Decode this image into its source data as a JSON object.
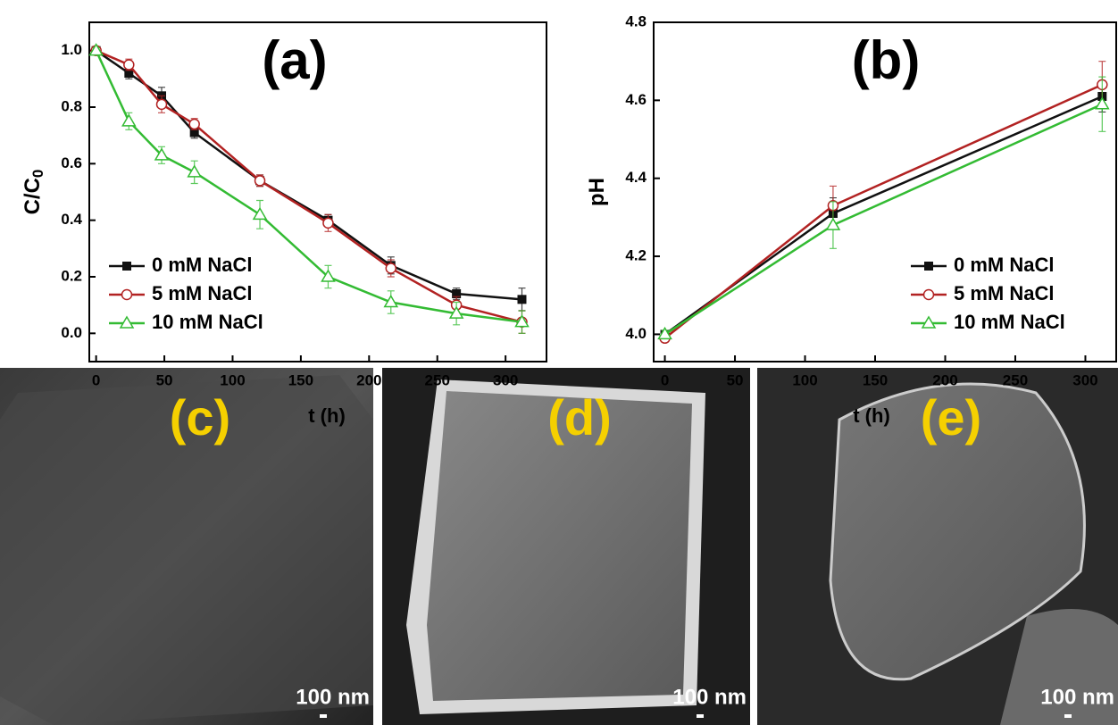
{
  "chart_data": [
    {
      "type": "line",
      "annotation": "(a)",
      "xlabel": "t (h)",
      "ylabel": "C/C",
      "ylabel_subscript": "0",
      "x": [
        0,
        24,
        48,
        72,
        120,
        170,
        216,
        264,
        312
      ],
      "xlim": [
        -5,
        330
      ],
      "xticks": [
        0,
        50,
        100,
        150,
        200,
        250,
        300
      ],
      "ylim": [
        -0.1,
        1.1
      ],
      "yticks": [
        {
          "value": 0,
          "label": "0.0"
        },
        0.2,
        0.4,
        0.6,
        0.8,
        {
          "value": 1,
          "label": "1.0"
        }
      ],
      "legend": "lower left",
      "series": [
        {
          "name": "0 mM NaCl",
          "color": "#111111",
          "marker": "square",
          "values": [
            1.0,
            0.92,
            0.84,
            0.71,
            0.54,
            0.4,
            0.24,
            0.14,
            0.12
          ],
          "errors": [
            0.01,
            0.02,
            0.03,
            0.02,
            0.02,
            0.02,
            0.03,
            0.02,
            0.04
          ]
        },
        {
          "name": "5 mM NaCl",
          "color": "#b22222",
          "marker": "circle",
          "values": [
            1.0,
            0.95,
            0.81,
            0.74,
            0.54,
            0.39,
            0.23,
            0.1,
            0.04
          ],
          "errors": [
            0.01,
            0.02,
            0.03,
            0.02,
            0.02,
            0.03,
            0.03,
            0.03,
            0.04
          ]
        },
        {
          "name": "10 mM NaCl",
          "color": "#33bb33",
          "marker": "triangle",
          "values": [
            1.0,
            0.75,
            0.63,
            0.57,
            0.42,
            0.2,
            0.11,
            0.07,
            0.04
          ],
          "errors": [
            0.01,
            0.03,
            0.03,
            0.04,
            0.05,
            0.04,
            0.04,
            0.04,
            0.04
          ]
        }
      ]
    },
    {
      "type": "line",
      "annotation": "(b)",
      "xlabel": "t (h)",
      "ylabel": "pH",
      "x": [
        0,
        120,
        312
      ],
      "xlim": [
        -8,
        322
      ],
      "xticks": [
        0,
        50,
        100,
        150,
        200,
        250,
        300
      ],
      "ylim": [
        3.93,
        4.8
      ],
      "yticks": [
        {
          "value": 4,
          "label": "4.0"
        },
        4.2,
        4.4,
        4.6,
        4.8
      ],
      "legend": "lower right",
      "series": [
        {
          "name": "0 mM NaCl",
          "color": "#111111",
          "marker": "square",
          "values": [
            4.0,
            4.31,
            4.61
          ],
          "errors": [
            0.01,
            0.04,
            0.04
          ]
        },
        {
          "name": "5 mM NaCl",
          "color": "#b22222",
          "marker": "circle",
          "values": [
            3.99,
            4.33,
            4.64
          ],
          "errors": [
            0.01,
            0.05,
            0.06
          ]
        },
        {
          "name": "10 mM NaCl",
          "color": "#33bb33",
          "marker": "triangle",
          "values": [
            4.0,
            4.28,
            4.59
          ],
          "errors": [
            0.01,
            0.06,
            0.07
          ]
        }
      ]
    }
  ],
  "images": [
    {
      "label": "(c)",
      "scale": "100 nm"
    },
    {
      "label": "(d)",
      "scale": "100 nm"
    },
    {
      "label": "(e)",
      "scale": "100 nm"
    }
  ]
}
